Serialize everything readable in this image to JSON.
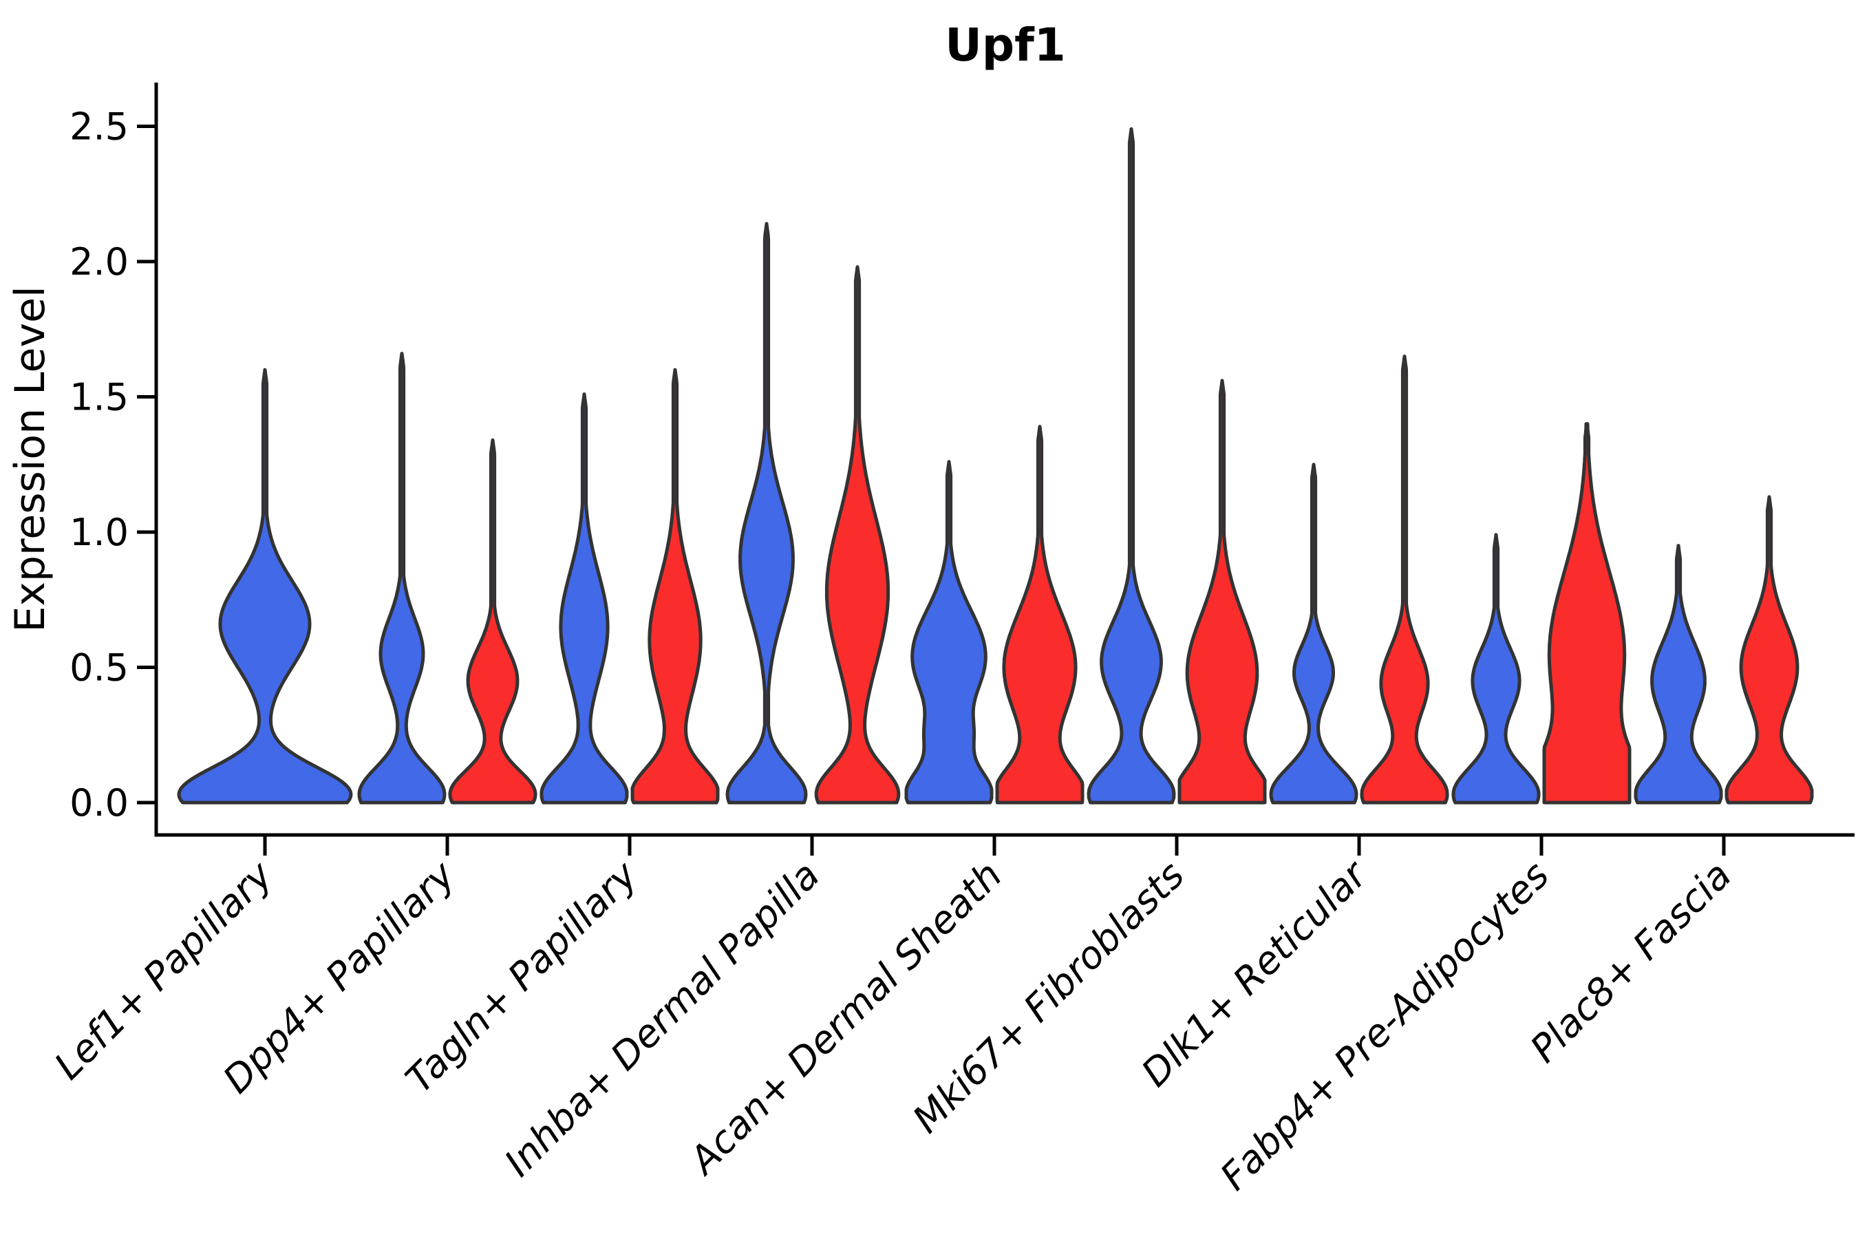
{
  "chart_data": {
    "type": "violin",
    "title": "Upf1",
    "ylabel": "Expression Level",
    "xlabel": "",
    "ylim": [
      0,
      2.6
    ],
    "yticks": [
      0.0,
      0.5,
      1.0,
      1.5,
      2.0,
      2.5
    ],
    "grid": false,
    "legend": "none",
    "categories": [
      "Lef1+ Papillary",
      "Dpp4+ Papillary",
      "Tagln+ Papillary",
      "Inhba+ Dermal Papilla",
      "Acan+ Dermal Sheath",
      "Mki67+ Fibroblasts",
      "Dlk1+ Reticular",
      "Fabp4+ Pre-Adipocytes",
      "Plac8+ Fascia"
    ],
    "series_colors": {
      "blue": "#4169E8",
      "red": "#FA2C2C"
    },
    "violin_outline_color": "#333333",
    "axis_color": "#000000",
    "violins": [
      {
        "category": "Lef1+ Papillary",
        "side": "solo",
        "color_key": "blue",
        "max_expression": 1.6,
        "profile": [
          [
            0.03,
            0.1,
            1.0
          ],
          [
            0.66,
            0.16,
            0.52
          ]
        ]
      },
      {
        "category": "Dpp4+ Papillary",
        "side": "left",
        "color_key": "blue",
        "max_expression": 1.66,
        "profile": [
          [
            0.03,
            0.1,
            1.0
          ],
          [
            0.55,
            0.13,
            0.5
          ]
        ]
      },
      {
        "category": "Dpp4+ Papillary",
        "side": "right",
        "color_key": "red",
        "max_expression": 1.34,
        "profile": [
          [
            0.03,
            0.09,
            1.0
          ],
          [
            0.45,
            0.12,
            0.58
          ]
        ]
      },
      {
        "category": "Tagln+ Papillary",
        "side": "left",
        "color_key": "blue",
        "max_expression": 1.51,
        "profile": [
          [
            0.03,
            0.1,
            1.0
          ],
          [
            0.65,
            0.2,
            0.55
          ]
        ]
      },
      {
        "category": "Tagln+ Papillary",
        "side": "right",
        "color_key": "red",
        "max_expression": 1.6,
        "profile": [
          [
            0.03,
            0.1,
            1.0
          ],
          [
            0.6,
            0.22,
            0.6
          ]
        ]
      },
      {
        "category": "Inhba+ Dermal Papilla",
        "side": "left",
        "color_key": "blue",
        "max_expression": 2.14,
        "profile": [
          [
            0.03,
            0.1,
            0.92
          ],
          [
            0.9,
            0.21,
            0.62
          ]
        ]
      },
      {
        "category": "Inhba+ Dermal Papilla",
        "side": "right",
        "color_key": "red",
        "max_expression": 1.98,
        "profile": [
          [
            0.03,
            0.1,
            0.95
          ],
          [
            0.78,
            0.27,
            0.72
          ]
        ]
      },
      {
        "category": "Acan+ Dermal Sheath",
        "side": "left",
        "color_key": "blue",
        "max_expression": 1.26,
        "profile": [
          [
            0.03,
            0.1,
            1.0
          ],
          [
            0.25,
            0.07,
            0.3
          ],
          [
            0.54,
            0.17,
            0.86
          ]
        ]
      },
      {
        "category": "Acan+ Dermal Sheath",
        "side": "right",
        "color_key": "red",
        "max_expression": 1.39,
        "profile": [
          [
            0.03,
            0.1,
            1.0
          ],
          [
            0.5,
            0.2,
            0.84
          ]
        ]
      },
      {
        "category": "Mki67+ Fibroblasts",
        "side": "left",
        "color_key": "blue",
        "max_expression": 2.49,
        "profile": [
          [
            0.03,
            0.1,
            1.0
          ],
          [
            0.52,
            0.15,
            0.7
          ]
        ]
      },
      {
        "category": "Mki67+ Fibroblasts",
        "side": "right",
        "color_key": "red",
        "max_expression": 1.56,
        "profile": [
          [
            0.03,
            0.1,
            1.0
          ],
          [
            0.48,
            0.21,
            0.82
          ]
        ]
      },
      {
        "category": "Dlk1+ Reticular",
        "side": "left",
        "color_key": "blue",
        "max_expression": 1.25,
        "profile": [
          [
            0.03,
            0.1,
            1.0
          ],
          [
            0.48,
            0.1,
            0.46
          ]
        ]
      },
      {
        "category": "Dlk1+ Reticular",
        "side": "right",
        "color_key": "red",
        "max_expression": 1.65,
        "profile": [
          [
            0.03,
            0.1,
            1.0
          ],
          [
            0.44,
            0.13,
            0.55
          ]
        ]
      },
      {
        "category": "Fabp4+ Pre-Adipocytes",
        "side": "left",
        "color_key": "blue",
        "max_expression": 0.99,
        "profile": [
          [
            0.03,
            0.1,
            1.0
          ],
          [
            0.45,
            0.12,
            0.55
          ]
        ]
      },
      {
        "category": "Fabp4+ Pre-Adipocytes",
        "side": "right",
        "color_key": "red",
        "max_expression": 1.4,
        "profile": [
          [
            0.05,
            0.14,
            1.0
          ],
          [
            0.55,
            0.3,
            0.88
          ]
        ]
      },
      {
        "category": "Plac8+ Fascia",
        "side": "left",
        "color_key": "blue",
        "max_expression": 0.95,
        "profile": [
          [
            0.03,
            0.1,
            1.0
          ],
          [
            0.45,
            0.14,
            0.62
          ]
        ]
      },
      {
        "category": "Plac8+ Fascia",
        "side": "right",
        "color_key": "red",
        "max_expression": 1.13,
        "profile": [
          [
            0.03,
            0.1,
            1.0
          ],
          [
            0.5,
            0.16,
            0.66
          ]
        ]
      }
    ]
  }
}
